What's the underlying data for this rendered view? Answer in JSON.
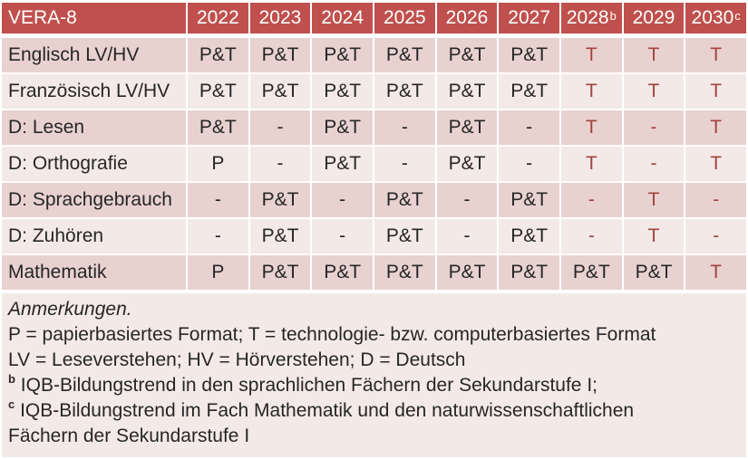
{
  "table": {
    "title": "VERA-8",
    "years": [
      {
        "text": "2022",
        "sup": ""
      },
      {
        "text": "2023",
        "sup": ""
      },
      {
        "text": "2024",
        "sup": ""
      },
      {
        "text": "2025",
        "sup": ""
      },
      {
        "text": "2026",
        "sup": ""
      },
      {
        "text": "2027",
        "sup": ""
      },
      {
        "text": "2028",
        "sup": "b"
      },
      {
        "text": "2029",
        "sup": ""
      },
      {
        "text": "2030",
        "sup": "c"
      }
    ],
    "rows": [
      {
        "label": "Englisch LV/HV",
        "cells": [
          {
            "v": "P&T",
            "red": false
          },
          {
            "v": "P&T",
            "red": false
          },
          {
            "v": "P&T",
            "red": false
          },
          {
            "v": "P&T",
            "red": false
          },
          {
            "v": "P&T",
            "red": false
          },
          {
            "v": "P&T",
            "red": false
          },
          {
            "v": "T",
            "red": true
          },
          {
            "v": "T",
            "red": true
          },
          {
            "v": "T",
            "red": true
          }
        ]
      },
      {
        "label": "Französisch LV/HV",
        "cells": [
          {
            "v": "P&T",
            "red": false
          },
          {
            "v": "P&T",
            "red": false
          },
          {
            "v": "P&T",
            "red": false
          },
          {
            "v": "P&T",
            "red": false
          },
          {
            "v": "P&T",
            "red": false
          },
          {
            "v": "P&T",
            "red": false
          },
          {
            "v": "T",
            "red": true
          },
          {
            "v": "T",
            "red": true
          },
          {
            "v": "T",
            "red": true
          }
        ]
      },
      {
        "label": "D: Lesen",
        "cells": [
          {
            "v": "P&T",
            "red": false
          },
          {
            "v": "-",
            "red": false
          },
          {
            "v": "P&T",
            "red": false
          },
          {
            "v": "-",
            "red": false
          },
          {
            "v": "P&T",
            "red": false
          },
          {
            "v": "-",
            "red": false
          },
          {
            "v": "T",
            "red": true
          },
          {
            "v": "-",
            "red": true
          },
          {
            "v": "T",
            "red": true
          }
        ]
      },
      {
        "label": "D: Orthografie",
        "cells": [
          {
            "v": "P",
            "red": false
          },
          {
            "v": "-",
            "red": false
          },
          {
            "v": "P&T",
            "red": false
          },
          {
            "v": "-",
            "red": false
          },
          {
            "v": "P&T",
            "red": false
          },
          {
            "v": "-",
            "red": false
          },
          {
            "v": "T",
            "red": true
          },
          {
            "v": "-",
            "red": true
          },
          {
            "v": "T",
            "red": true
          }
        ]
      },
      {
        "label": "D: Sprachgebrauch",
        "cells": [
          {
            "v": "-",
            "red": false
          },
          {
            "v": "P&T",
            "red": false
          },
          {
            "v": "-",
            "red": false
          },
          {
            "v": "P&T",
            "red": false
          },
          {
            "v": "-",
            "red": false
          },
          {
            "v": "P&T",
            "red": false
          },
          {
            "v": "-",
            "red": true
          },
          {
            "v": "T",
            "red": true
          },
          {
            "v": "-",
            "red": true
          }
        ]
      },
      {
        "label": "D: Zuhören",
        "cells": [
          {
            "v": "-",
            "red": false
          },
          {
            "v": "P&T",
            "red": false
          },
          {
            "v": "-",
            "red": false
          },
          {
            "v": "P&T",
            "red": false
          },
          {
            "v": "-",
            "red": false
          },
          {
            "v": "P&T",
            "red": false
          },
          {
            "v": "-",
            "red": true
          },
          {
            "v": "T",
            "red": true
          },
          {
            "v": "-",
            "red": true
          }
        ]
      },
      {
        "label": "Mathematik",
        "cells": [
          {
            "v": "P",
            "red": false
          },
          {
            "v": "P&T",
            "red": false
          },
          {
            "v": "P&T",
            "red": false
          },
          {
            "v": "P&T",
            "red": false
          },
          {
            "v": "P&T",
            "red": false
          },
          {
            "v": "P&T",
            "red": false
          },
          {
            "v": "P&T",
            "red": false
          },
          {
            "v": "P&T",
            "red": false
          },
          {
            "v": "T",
            "red": true
          }
        ]
      }
    ]
  },
  "notes": {
    "title": "Anmerkungen.",
    "lines": [
      {
        "sup": "",
        "text": "P = papierbasiertes Format; T = technologie- bzw. computerbasiertes Format"
      },
      {
        "sup": "",
        "text": "LV = Leseverstehen; HV = Hörverstehen; D = Deutsch"
      },
      {
        "sup": "b",
        "text": "IQB-Bildungstrend in den sprachlichen Fächern der Sekundarstufe I;"
      },
      {
        "sup": "c",
        "text": "IQB-Bildungstrend im Fach Mathematik und den naturwissenschaftlichen Fächern der Sekundarstufe I"
      }
    ]
  },
  "colors": {
    "header_bg": "#C0504D",
    "header_text": "#FFFFFF",
    "band_dark": "#E8D2D0",
    "band_light": "#F3EAE8",
    "notes_bg": "#F3EAE8",
    "tech_red": "#A0443F",
    "body_text": "#262626"
  }
}
